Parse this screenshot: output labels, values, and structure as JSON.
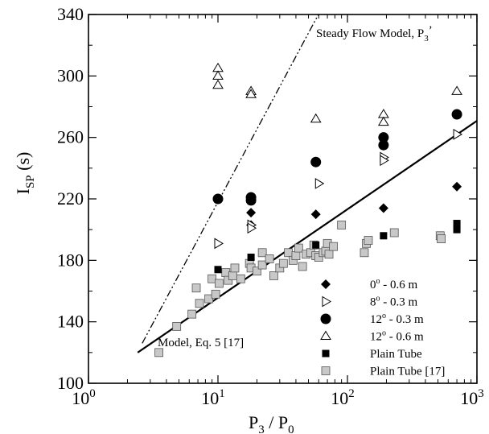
{
  "chart_data": {
    "type": "scatter",
    "xscale": "log",
    "xlim": [
      1,
      1000
    ],
    "ylim": [
      100,
      340
    ],
    "grid": false,
    "legend_position": "bottom-right",
    "xlabel": {
      "main": "P",
      "sub1": "3",
      "sep": " / P",
      "sub2": "0"
    },
    "ylabel": {
      "main": "I",
      "sub": "SP",
      "rest": " (s)"
    },
    "xtick_labels": [
      {
        "value": 1,
        "base": "10",
        "exp": "0"
      },
      {
        "value": 10,
        "base": "10",
        "exp": "1"
      },
      {
        "value": 100,
        "base": "10",
        "exp": "2"
      },
      {
        "value": 1000,
        "base": "10",
        "exp": "3"
      }
    ],
    "yticks": [
      100,
      140,
      180,
      220,
      260,
      300,
      340
    ],
    "ytick_labels": [
      "100",
      "140",
      "180",
      "220",
      "260",
      "300",
      "340"
    ],
    "annotations": {
      "steady_flow_main": "Steady Flow Model, P",
      "steady_flow_sub": "3",
      "steady_flow_tail": "’",
      "model_eq": "Model, Eq. 5 [17]"
    },
    "lines": [
      {
        "name": "Model, Eq. 5 [17]",
        "style": "solid",
        "color": "#000000",
        "xmin": 2.4,
        "xmax": 1000,
        "a": 120,
        "b": 25.0,
        "x0": 2.4
      },
      {
        "name": "Steady Flow Model, P3’",
        "style": "dashdot",
        "color": "#000000",
        "xmin": 2.6,
        "xmax": 1000,
        "a": 126,
        "b": 68.3,
        "x0": 2.6
      }
    ],
    "series": [
      {
        "label": {
          "num": "0",
          "sup": "o",
          "rest": " - 0.6 m"
        },
        "marker": "diamond",
        "color": "#000000",
        "points": [
          [
            18,
            211
          ],
          [
            18,
            203
          ],
          [
            57,
            210
          ],
          [
            190,
            214
          ],
          [
            700,
            228
          ]
        ]
      },
      {
        "label": {
          "num": "8",
          "sup": "o",
          "rest": " - 0.3 m"
        },
        "marker": "triangle-right",
        "color": "#000000",
        "points": [
          [
            10,
            191
          ],
          [
            18,
            203
          ],
          [
            18,
            201
          ],
          [
            60,
            230
          ],
          [
            190,
            247
          ],
          [
            190,
            245
          ],
          [
            700,
            262
          ]
        ]
      },
      {
        "label": {
          "num": "12",
          "sup": "o",
          "rest": " - 0.3 m"
        },
        "marker": "circle",
        "color": "#000000",
        "points": [
          [
            10,
            220
          ],
          [
            18,
            221
          ],
          [
            18,
            219
          ],
          [
            57,
            244
          ],
          [
            190,
            260
          ],
          [
            190,
            255
          ],
          [
            700,
            275
          ]
        ]
      },
      {
        "label": {
          "num": "12",
          "sup": "o",
          "rest": " - 0.6 m"
        },
        "marker": "triangle-up",
        "color": "#000000",
        "points": [
          [
            10,
            305
          ],
          [
            10,
            300
          ],
          [
            10,
            294
          ],
          [
            18,
            290
          ],
          [
            18,
            288
          ],
          [
            57,
            272
          ],
          [
            190,
            275
          ],
          [
            190,
            270
          ],
          [
            700,
            290
          ]
        ]
      },
      {
        "label": {
          "num": "Plain Tube",
          "sup": "",
          "rest": ""
        },
        "marker": "square",
        "color": "#000000",
        "points": [
          [
            10,
            174
          ],
          [
            18,
            182
          ],
          [
            57,
            190
          ],
          [
            190,
            196
          ],
          [
            700,
            204
          ],
          [
            700,
            200
          ]
        ]
      },
      {
        "label": {
          "num": "Plain Tube [17]",
          "sup": "",
          "rest": ""
        },
        "marker": "square-gray",
        "color": "#c0c0c0",
        "points": [
          [
            3.5,
            120
          ],
          [
            4.8,
            137
          ],
          [
            6.3,
            145
          ],
          [
            6.8,
            162
          ],
          [
            7.2,
            152
          ],
          [
            8.5,
            155
          ],
          [
            9.0,
            168
          ],
          [
            9.6,
            158
          ],
          [
            10.2,
            165
          ],
          [
            11.5,
            172
          ],
          [
            12,
            167
          ],
          [
            13,
            170
          ],
          [
            13.5,
            175
          ],
          [
            15,
            168
          ],
          [
            17.5,
            178
          ],
          [
            18,
            175
          ],
          [
            20,
            173
          ],
          [
            22,
            177
          ],
          [
            22,
            185
          ],
          [
            25,
            181
          ],
          [
            27,
            170
          ],
          [
            30,
            175
          ],
          [
            32,
            178
          ],
          [
            35,
            185
          ],
          [
            38,
            180
          ],
          [
            40,
            183
          ],
          [
            42,
            188
          ],
          [
            45,
            176
          ],
          [
            48,
            184
          ],
          [
            52,
            185
          ],
          [
            55,
            190
          ],
          [
            57,
            183
          ],
          [
            60,
            182
          ],
          [
            65,
            185
          ],
          [
            68,
            186
          ],
          [
            70,
            191
          ],
          [
            72,
            184
          ],
          [
            78,
            189
          ],
          [
            90,
            203
          ],
          [
            135,
            185
          ],
          [
            140,
            191
          ],
          [
            145,
            193
          ],
          [
            230,
            198
          ],
          [
            520,
            196
          ],
          [
            530,
            194
          ]
        ]
      }
    ]
  }
}
